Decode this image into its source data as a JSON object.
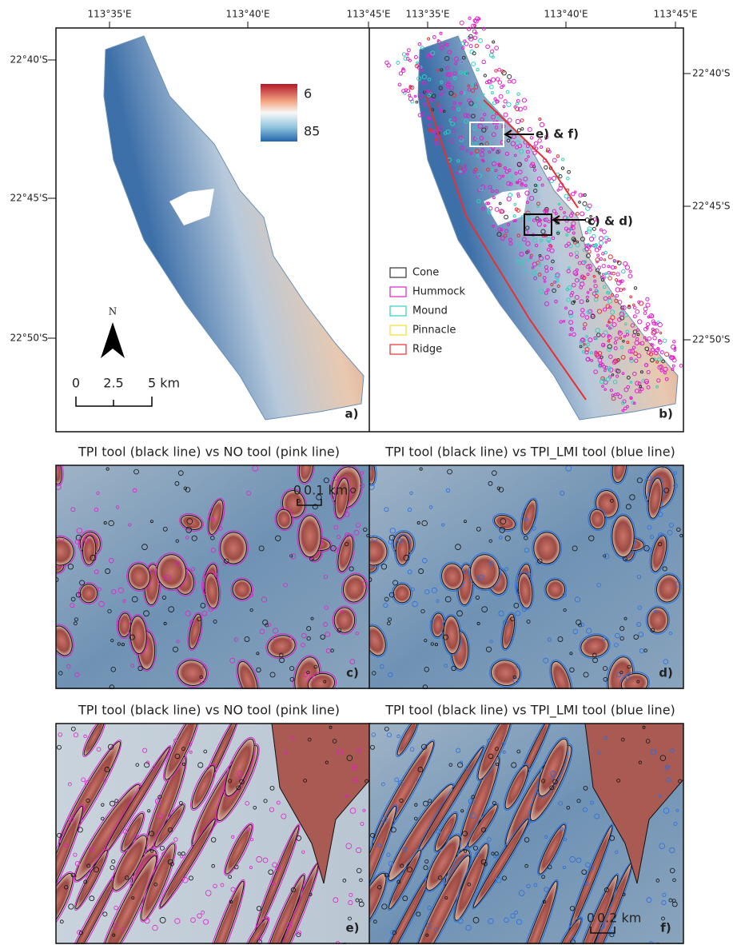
{
  "panel_a": {
    "label": "a)",
    "lon_ticks": [
      "113°35'E",
      "113°40'E",
      "113°45'E"
    ],
    "lat_ticks": [
      "22°40'S",
      "22°45'S",
      "22°50'S"
    ],
    "colorbar": [
      6,
      85
    ],
    "north": "N",
    "scalebar": [
      "0",
      "2.5",
      "5 km"
    ]
  },
  "panel_b": {
    "label": "b)",
    "lon_ticks": [
      "113°35'E",
      "113°40'E",
      "113°45'E"
    ],
    "lat_ticks": [
      "22°40'S",
      "22°45'S",
      "22°50'S"
    ],
    "legend": [
      {
        "name": "Cone",
        "color": "#333333"
      },
      {
        "name": "Hummock",
        "color": "#e020c8"
      },
      {
        "name": "Mound",
        "color": "#30d0c0"
      },
      {
        "name": "Pinnacle",
        "color": "#f0e030"
      },
      {
        "name": "Ridge",
        "color": "#e83030"
      }
    ],
    "callouts": [
      "e) & f)",
      "c) & d)"
    ]
  },
  "detail_panels": [
    {
      "title": "TPI tool (black line) vs NO tool (pink line)",
      "label": "c)",
      "scalebar": [
        "0",
        "0.1 km"
      ],
      "outline": "#e020c8"
    },
    {
      "title": "TPI tool (black line) vs TPI_LMI tool (blue line)",
      "label": "d)",
      "outline": "#2a6ee0"
    },
    {
      "title": "TPI tool (black line) vs NO tool (pink line)",
      "label": "e)",
      "outline": "#e020c8"
    },
    {
      "title": "TPI tool (black line) vs TPI_LMI tool (blue line)",
      "label": "f)",
      "scalebar": [
        "0",
        "0.2 km"
      ],
      "outline": "#2a6ee0"
    }
  ]
}
